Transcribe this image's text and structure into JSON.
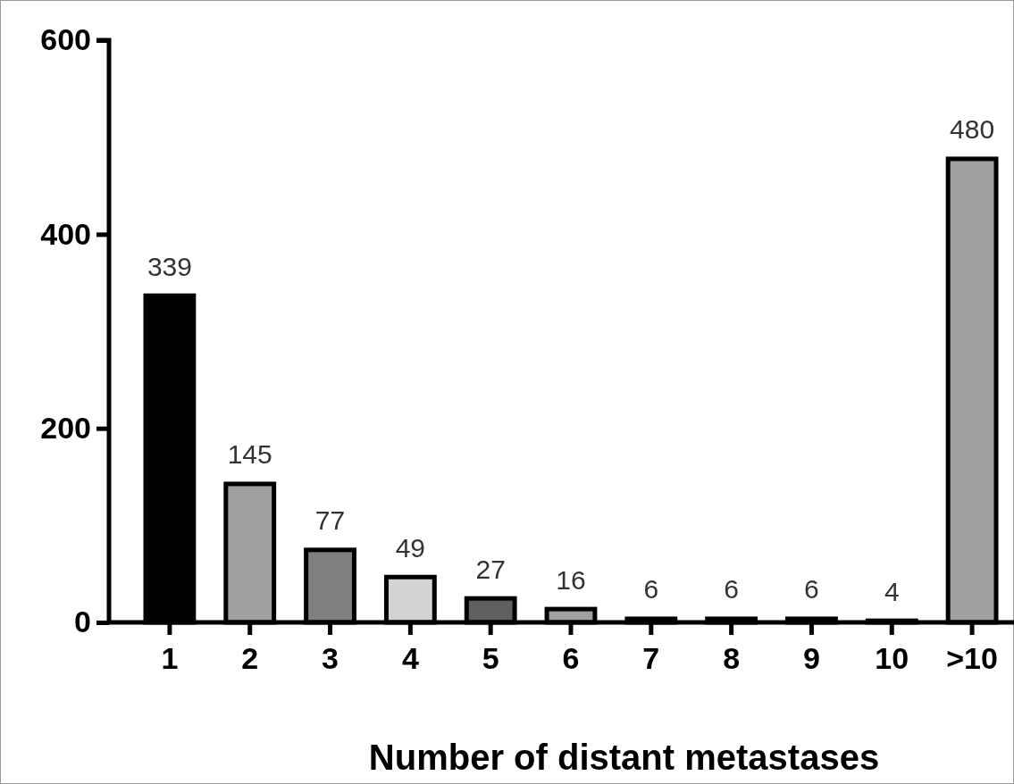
{
  "chart_data": {
    "type": "bar",
    "xlabel": "Number of distant metastases",
    "categories": [
      "1",
      "2",
      "3",
      "4",
      "5",
      "6",
      "7",
      "8",
      "9",
      "10",
      ">10"
    ],
    "values": [
      339,
      145,
      77,
      49,
      27,
      16,
      6,
      6,
      6,
      4,
      480
    ],
    "colors": [
      "#000000",
      "#a0a0a0",
      "#808080",
      "#d3d3d3",
      "#606060",
      "#a0a0a0",
      "#000000",
      "#000000",
      "#000000",
      "#000000",
      "#a0a0a0"
    ],
    "ylim": [
      0,
      600
    ],
    "yticks": [
      0,
      200,
      400,
      600
    ],
    "grid": false,
    "data_labels": true
  }
}
